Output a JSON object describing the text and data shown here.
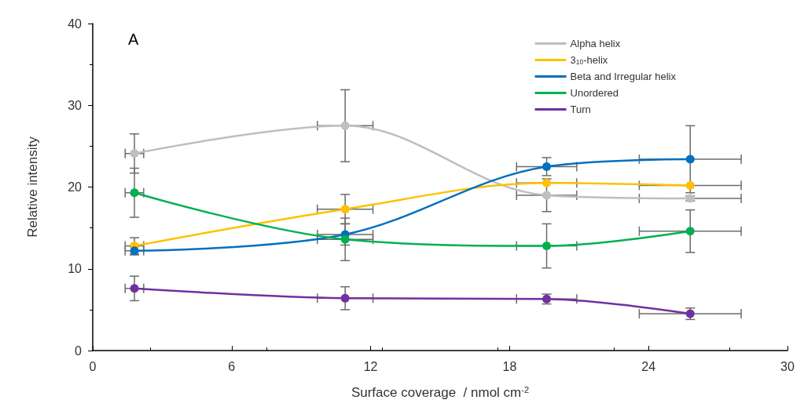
{
  "chart_data": {
    "type": "line",
    "xlabel": "Surface coverage  / nmol cm$^{-2}$",
    "ylabel": "Relative intensity",
    "annotations": [
      "A"
    ],
    "x": [
      1.8,
      10.9,
      19.6,
      25.8
    ],
    "series": [
      {
        "name": "Alpha helix",
        "color": "#bfbfbf",
        "values": [
          24.1,
          27.5,
          19.0,
          18.6
        ],
        "errors": [
          2.4,
          4.4,
          2.0,
          0.3
        ],
        "xerrors": [
          0.4,
          1.2,
          1.3,
          2.2
        ]
      },
      {
        "name": "3$_{10}$-helix",
        "color": "#ffc000",
        "values": [
          12.8,
          17.3,
          20.5,
          20.2
        ],
        "errors": [
          1.0,
          1.8,
          null,
          null
        ],
        "xerrors": [
          0.4,
          1.2,
          1.3,
          2.2
        ]
      },
      {
        "name": "Beta and Irregular helix",
        "color": "#0070c0",
        "values": [
          12.2,
          14.2,
          22.5,
          23.4
        ],
        "errors": [
          0.5,
          1.3,
          1.1,
          4.1
        ],
        "xerrors": [
          0.4,
          1.2,
          1.3,
          2.2
        ]
      },
      {
        "name": "Unordered",
        "color": "#00b050",
        "values": [
          19.3,
          13.6,
          12.8,
          14.6
        ],
        "errors": [
          3.0,
          2.6,
          2.7,
          2.6
        ],
        "xerrors": [
          0.4,
          1.2,
          1.3,
          2.2
        ]
      },
      {
        "name": "Turn",
        "color": "#7030a0",
        "values": [
          7.6,
          6.4,
          6.3,
          4.5
        ],
        "errors": [
          1.5,
          1.4,
          0.6,
          0.7
        ],
        "xerrors": [
          0.4,
          1.2,
          1.3,
          2.2
        ]
      }
    ],
    "xlim": [
      0,
      30
    ],
    "xticks": [
      0,
      6,
      12,
      18,
      24,
      30
    ],
    "ylim": [
      0,
      40
    ],
    "yticks": [
      0,
      10,
      20,
      30,
      40
    ],
    "grid": false,
    "legend": "top right",
    "marker": "circle",
    "line_style": "solid"
  }
}
